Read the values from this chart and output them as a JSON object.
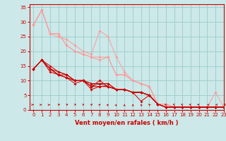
{
  "title": "",
  "xlabel": "Vent moyen/en rafales ( km/h )",
  "ylabel": "",
  "background_color": "#cce8e8",
  "grid_color": "#99cccc",
  "xlim": [
    -0.5,
    23
  ],
  "ylim": [
    0,
    36
  ],
  "yticks": [
    0,
    5,
    10,
    15,
    20,
    25,
    30,
    35
  ],
  "xticks": [
    0,
    1,
    2,
    3,
    4,
    5,
    6,
    7,
    8,
    9,
    10,
    11,
    12,
    13,
    14,
    15,
    16,
    17,
    18,
    19,
    20,
    21,
    22,
    23
  ],
  "lines_dark": [
    {
      "x": [
        0,
        1,
        2,
        3,
        4,
        5,
        6,
        7,
        8,
        9,
        10,
        11,
        12,
        13,
        14,
        15,
        16,
        17,
        18,
        19,
        20,
        21,
        22,
        23
      ],
      "y": [
        14,
        17,
        14,
        12,
        11,
        9,
        10,
        8,
        8,
        8,
        7,
        7,
        6,
        6,
        5,
        2,
        1,
        1,
        1,
        1,
        1,
        1,
        1,
        1
      ]
    },
    {
      "x": [
        0,
        1,
        2,
        3,
        4,
        5,
        6,
        7,
        8,
        9,
        10,
        11,
        12,
        13,
        14,
        15,
        16,
        17,
        18,
        19,
        20,
        21,
        22,
        23
      ],
      "y": [
        14,
        17,
        15,
        13,
        12,
        10,
        10,
        8,
        10,
        8,
        7,
        7,
        6,
        3,
        5,
        2,
        1,
        1,
        1,
        1,
        1,
        1,
        1,
        1
      ]
    },
    {
      "x": [
        0,
        1,
        2,
        3,
        4,
        5,
        6,
        7,
        8,
        9,
        10,
        11,
        12,
        13,
        14,
        15,
        16,
        17,
        18,
        19,
        20,
        21,
        22,
        23
      ],
      "y": [
        14,
        17,
        14,
        13,
        12,
        10,
        10,
        9,
        9,
        9,
        7,
        7,
        6,
        6,
        5,
        2,
        1,
        1,
        1,
        1,
        1,
        1,
        1,
        1
      ]
    },
    {
      "x": [
        0,
        1,
        2,
        3,
        4,
        5,
        6,
        7,
        8,
        9,
        10,
        11,
        12,
        13,
        14,
        15,
        16,
        17,
        18,
        19,
        20,
        21,
        22,
        23
      ],
      "y": [
        14,
        17,
        14,
        12,
        12,
        10,
        10,
        9,
        9,
        9,
        7,
        7,
        6,
        6,
        5,
        2,
        1,
        1,
        1,
        1,
        1,
        1,
        1,
        1
      ]
    },
    {
      "x": [
        0,
        1,
        2,
        3,
        4,
        5,
        6,
        7,
        8,
        9,
        10,
        11,
        12,
        13,
        14,
        15,
        16,
        17,
        18,
        19,
        20,
        21,
        22,
        23
      ],
      "y": [
        14,
        17,
        14,
        12,
        11,
        10,
        10,
        7,
        8,
        8,
        7,
        7,
        6,
        6,
        5,
        2,
        1,
        1,
        1,
        1,
        1,
        1,
        1,
        1
      ]
    },
    {
      "x": [
        0,
        1,
        2,
        3,
        4,
        5,
        6,
        7,
        8,
        9,
        10,
        11,
        12,
        13,
        14,
        15,
        16,
        17,
        18,
        19,
        20,
        21,
        22,
        23
      ],
      "y": [
        14,
        17,
        13,
        12,
        11,
        10,
        10,
        8,
        9,
        8,
        7,
        7,
        6,
        6,
        5,
        2,
        1,
        1,
        1,
        1,
        1,
        1,
        1,
        1
      ]
    }
  ],
  "lines_light": [
    {
      "x": [
        0,
        1,
        2,
        3,
        4,
        5,
        6,
        7,
        8,
        9,
        10,
        11,
        12,
        13,
        14,
        15,
        16,
        17,
        18,
        19,
        20,
        21,
        22,
        23
      ],
      "y": [
        29,
        34,
        26,
        26,
        22,
        20,
        19,
        18,
        17,
        18,
        12,
        12,
        10,
        9,
        8,
        2,
        2,
        1,
        1,
        1,
        1,
        1,
        1,
        1
      ]
    },
    {
      "x": [
        0,
        1,
        2,
        3,
        4,
        5,
        6,
        7,
        8,
        9,
        10,
        11,
        12,
        13,
        14,
        15,
        16,
        17,
        18,
        19,
        20,
        21,
        22,
        23
      ],
      "y": [
        29,
        34,
        26,
        25,
        24,
        22,
        20,
        19,
        27,
        25,
        18,
        13,
        10,
        9,
        8,
        2,
        2,
        1,
        1,
        1,
        1,
        1,
        1,
        1
      ]
    },
    {
      "x": [
        0,
        1,
        2,
        3,
        4,
        5,
        6,
        7,
        8,
        9,
        10,
        11,
        12,
        13,
        14,
        15,
        16,
        17,
        18,
        19,
        20,
        21,
        22,
        23
      ],
      "y": [
        29,
        34,
        26,
        26,
        22,
        20,
        19,
        18,
        18,
        18,
        12,
        12,
        10,
        9,
        8,
        2,
        2,
        1,
        1,
        1,
        1,
        1,
        6,
        1
      ]
    }
  ],
  "dark_color": "#cc0000",
  "light_color": "#ff9999",
  "marker": "D",
  "markersize": 2.0,
  "linewidth": 0.7,
  "xlabel_fontsize": 6.0,
  "tick_fontsize": 5.0
}
